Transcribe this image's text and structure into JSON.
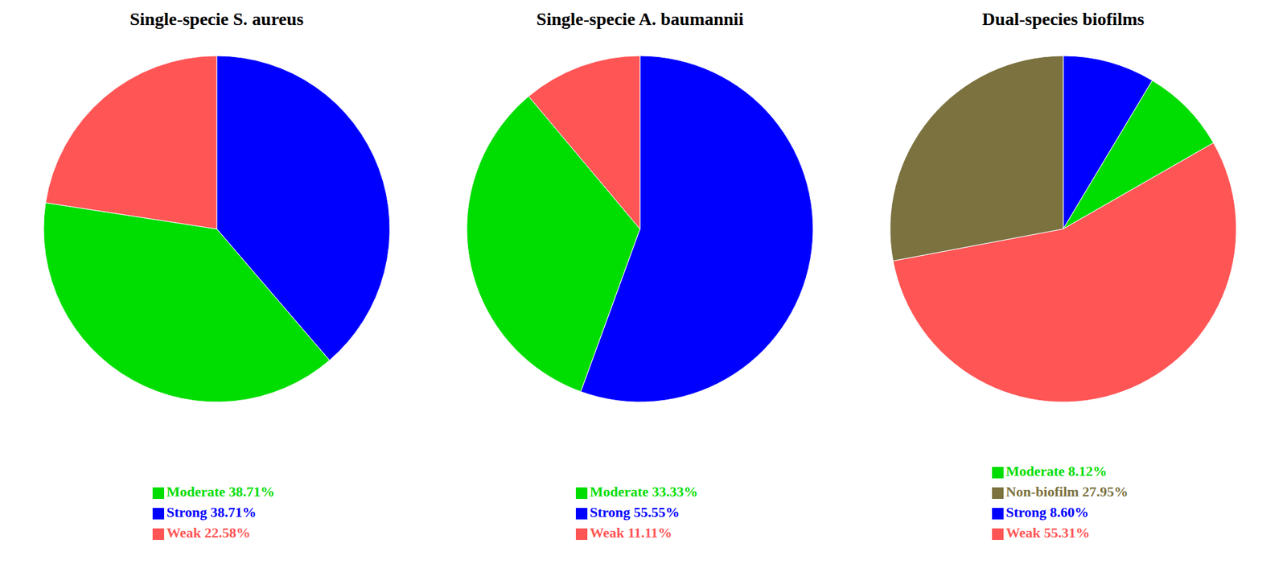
{
  "chart_data": [
    {
      "type": "pie",
      "title": "Single-specie S. aureus",
      "categories": [
        "Strong 38.71%",
        "Moderate 38.71%",
        "Weak 22.58%"
      ],
      "values": [
        38.71,
        38.71,
        22.58
      ],
      "colors": [
        "#0000FF",
        "#00DD00",
        "#FF5555"
      ],
      "legend": "bottom"
    },
    {
      "type": "pie",
      "title": "Single-specie A. baumannii",
      "categories": [
        "Strong 55.55%",
        "Moderate 33.33%",
        "Weak 11.11%"
      ],
      "values": [
        55.55,
        33.33,
        11.11
      ],
      "colors": [
        "#0000FF",
        "#00DD00",
        "#FF5555"
      ],
      "legend": "bottom"
    },
    {
      "type": "pie",
      "title": "Dual-species biofilms",
      "categories": [
        "Strong 8.60%",
        "Moderate 8.12%",
        "Weak 55.31%",
        "Non-biofilm 27.95%"
      ],
      "values": [
        8.6,
        8.12,
        55.31,
        27.95
      ],
      "colors": [
        "#0000FF",
        "#00DD00",
        "#FF5555",
        "#7B7240"
      ],
      "legend": "bottom"
    }
  ]
}
